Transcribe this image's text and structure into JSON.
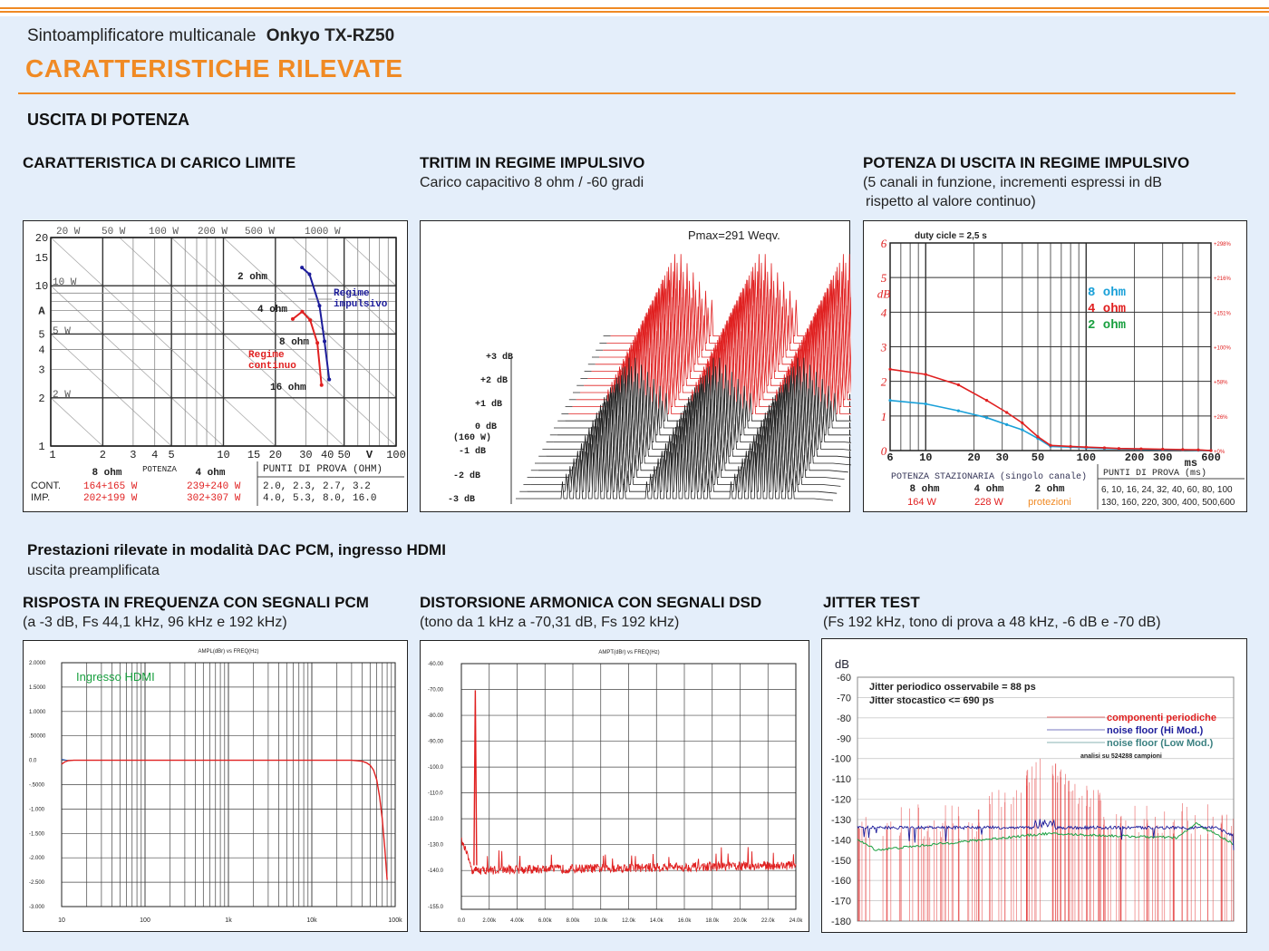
{
  "header": {
    "subtitle": "Sintoamplificatore multicanale",
    "model": "Onkyo TX-RZ50",
    "title": "CARATTERISTICHE RILEVATE"
  },
  "section1": {
    "title": "USCITA DI POTENZA"
  },
  "section2": {
    "title": "Prestazioni rilevate in modalità DAC PCM, ingresso HDMI",
    "subtitle": "uscita preamplificata"
  },
  "colors": {
    "accent": "#f08a24",
    "red": "#e02020",
    "blue": "#1c1c9a",
    "cyan": "#1aa0d8",
    "green": "#1aa040",
    "orange": "#f08a24"
  },
  "panel1": {
    "title": "CARATTERISTICA DI CARICO LIMITE",
    "chart_data": {
      "type": "line",
      "xscale": "log",
      "yscale": "log",
      "xlim": [
        1,
        100
      ],
      "ylim": [
        1,
        20
      ],
      "xlabel": "V",
      "ylabel": "A",
      "x_ticks": [
        "1",
        "2",
        "3",
        "4",
        "5",
        "10",
        "15",
        "20",
        "30",
        "40",
        "50",
        "V",
        "100"
      ],
      "y_ticks": [
        "20",
        "15",
        "10",
        "A",
        "5",
        "4",
        "3",
        "2",
        "1"
      ],
      "power_lines": [
        "20 W",
        "50 W",
        "100 W",
        "200 W",
        "500 W",
        "1000 W",
        "10 W",
        "5 W",
        "2 W"
      ],
      "series": [
        {
          "name": "Regime continuo",
          "color": "red",
          "points": [
            [
              25.2,
              6.2
            ],
            [
              28.6,
              6.9
            ],
            [
              31.8,
              6.1
            ],
            [
              35,
              4.4
            ],
            [
              37,
              2.4
            ]
          ]
        },
        {
          "name": "Regime impulsivo",
          "color": "blue",
          "points": [
            [
              28.5,
              13
            ],
            [
              31.5,
              11.8
            ],
            [
              36,
              7.5
            ],
            [
              38.5,
              4.5
            ],
            [
              41,
              2.6
            ]
          ]
        }
      ],
      "annotations": [
        "2 ohm",
        "4 ohm",
        "8 ohm",
        "16 ohm",
        "Regime",
        "continuo",
        "Regime",
        "impulsivo"
      ]
    },
    "table": {
      "col_8": "8 ohm",
      "col_pot": "POTENZA",
      "col_4": "4 ohm",
      "col_punti": "PUNTI DI PROVA (OHM)",
      "rows": [
        {
          "label": "CONT.",
          "v8": "164+165 W",
          "v4": "239+240 W",
          "punti": "2.0, 2.3, 2.7, 3.2"
        },
        {
          "label": "IMP.",
          "v8": "202+199 W",
          "v4": "302+307 W",
          "punti": "4.0, 5.3, 8.0, 16.0"
        }
      ]
    }
  },
  "panel2": {
    "title": "TRITIM IN REGIME IMPULSIVO",
    "desc": "Carico capacitivo 8 ohm / -60 gradi",
    "chart_data": {
      "type": "waterfall",
      "pmax": "Pmax=291 Weqv.",
      "levels": [
        "+3 dB",
        "+2 dB",
        "+1 dB",
        "0 dB",
        "(160 W)",
        "-1 dB",
        "-2 dB",
        "-3 dB"
      ],
      "burst_groups": 3,
      "bursts_per_group": 11,
      "traces": 24,
      "red_traces": 12
    }
  },
  "panel3": {
    "title": "POTENZA DI USCITA IN REGIME IMPULSIVO",
    "desc1": "(5 canali in funzione, incrementi espressi in dB",
    "desc2": "rispetto al valore continuo)",
    "chart_data": {
      "type": "line",
      "xscale": "log",
      "title": "duty cicle = 2,5 s",
      "xlim": [
        6,
        600
      ],
      "ylim": [
        0,
        6
      ],
      "ylabel": "dB",
      "xlabel": "ms",
      "x_ticks": [
        "6",
        "10",
        "20",
        "30",
        "50",
        "100",
        "200",
        "300",
        "ms",
        "600"
      ],
      "y_ticks": [
        "6",
        "5",
        "dB",
        "4",
        "3",
        "2",
        "1",
        "0"
      ],
      "right_ticks": [
        "+298%",
        "+216%",
        "+151%",
        "+100%",
        "+58%",
        "+26%",
        "+0%"
      ],
      "legend": [
        {
          "label": "8 ohm",
          "color": "cyan"
        },
        {
          "label": "4 ohm",
          "color": "red"
        },
        {
          "label": "2 ohm",
          "color": "green"
        }
      ],
      "series": [
        {
          "name": "8 ohm",
          "color": "cyan",
          "x": [
            6,
            10,
            16,
            24,
            32,
            40,
            50,
            60,
            80,
            100,
            130,
            160,
            220,
            300,
            400,
            500,
            600
          ],
          "y": [
            1.45,
            1.35,
            1.15,
            0.95,
            0.75,
            0.6,
            0.35,
            0.12,
            0.1,
            0.08,
            0.06,
            0.05,
            0.04,
            0.03,
            0.02,
            0.01,
            0.0
          ]
        },
        {
          "name": "4 ohm",
          "color": "red",
          "x": [
            6,
            10,
            16,
            24,
            32,
            40,
            50,
            60,
            80,
            100,
            130,
            160,
            220,
            300,
            400,
            500,
            600
          ],
          "y": [
            2.35,
            2.2,
            1.9,
            1.45,
            1.1,
            0.8,
            0.4,
            0.15,
            0.12,
            0.1,
            0.08,
            0.06,
            0.05,
            0.04,
            0.03,
            0.02,
            0.0
          ]
        }
      ]
    },
    "table": {
      "head": "POTENZA STAZIONARIA (singolo canale)",
      "head2": "PUNTI DI PROVA (ms)",
      "c8": "8 ohm",
      "c4": "4 ohm",
      "c2": "2 ohm",
      "v8": "164 W",
      "v4": "228 W",
      "v2": "protezioni",
      "punti1": "6, 10, 16, 24, 32, 40, 60, 80, 100",
      "punti2": "130, 160, 220, 300, 400, 500,600"
    }
  },
  "panel4": {
    "title": "RISPOSTA IN FREQUENZA CON SEGNALI PCM",
    "desc": "(a -3 dB, Fs 44,1 kHz, 96 kHz e 192 kHz)",
    "chart_data": {
      "type": "line",
      "xscale": "log",
      "header": "AMPL(dBr)          vs          FREQ(Hz)",
      "label": "Ingresso HDMI",
      "xlim": [
        10,
        100000
      ],
      "ylim": [
        -3,
        2
      ],
      "x_ticks": [
        "10",
        "100",
        "1k",
        "10k",
        "100k"
      ],
      "y_ticks": [
        "2.0000",
        "1.5000",
        "1.0000",
        ".50000",
        "0.0",
        "-.5000",
        "-1.000",
        "-1.500",
        "-2.000",
        "-2.500",
        "-3.000"
      ],
      "series": [
        {
          "name": "response",
          "color": "red",
          "x": [
            10,
            11,
            12,
            14,
            20,
            100,
            1000,
            10000,
            20000,
            30000,
            40000,
            45000,
            50000,
            55000,
            60000,
            65000,
            70000,
            75000,
            80000
          ],
          "y": [
            -0.08,
            -0.03,
            -0.01,
            0.0,
            0.0,
            0.0,
            0.0,
            0.0,
            0.0,
            0.0,
            -0.02,
            -0.05,
            -0.1,
            -0.2,
            -0.4,
            -0.75,
            -1.2,
            -1.8,
            -2.45
          ]
        }
      ]
    }
  },
  "panel5": {
    "title": "DISTORSIONE ARMONICA CON SEGNALI DSD",
    "desc": "(tono da 1 kHz a -70,31 dB, Fs 192 kHz)",
    "chart_data": {
      "type": "line",
      "header": "AMPT(dBr)          vs          FREQ(Hz)",
      "xlim": [
        0,
        24000
      ],
      "ylim": [
        -155,
        -60
      ],
      "x_ticks": [
        "0.0",
        "2.00k",
        "4.00k",
        "6.00k",
        "8.00k",
        "10.0k",
        "12.0k",
        "14.0k",
        "16.0k",
        "18.0k",
        "20.0k",
        "22.0k",
        "24.0k"
      ],
      "y_ticks": [
        "-60.00",
        "-70.00",
        "-80.00",
        "-90.00",
        "-100.0",
        "-110.0",
        "-120.0",
        "-130.0",
        "-140.0",
        "-155.0"
      ],
      "fundamental": {
        "freq": 1000,
        "level": -70.3
      },
      "noise_floor": -140
    }
  },
  "panel6": {
    "title": "JITTER TEST",
    "desc": "(Fs 192 kHz, tono di prova a 48 kHz, -6 dB e -70 dB)",
    "chart_data": {
      "type": "line",
      "ylabel": "dB",
      "ylim": [
        -180,
        -60
      ],
      "y_ticks": [
        "-60",
        "-70",
        "-80",
        "-90",
        "-100",
        "-110",
        "-120",
        "-130",
        "-140",
        "-150",
        "-160",
        "-170",
        "-180"
      ],
      "text1": "Jitter  periodico osservabile = 88 ps",
      "text2": "Jitter stocastico <= 690 ps",
      "legend": [
        {
          "label": "componenti  periodiche",
          "color": "red"
        },
        {
          "label": "noise floor (Hi Mod.)",
          "color": "blue"
        },
        {
          "label": "noise floor (Low Mod.)",
          "color": "green"
        }
      ],
      "note": "analisi su 524288 campioni",
      "series": [
        {
          "name": "noise floor (Hi Mod.)",
          "color": "blue",
          "level": -134
        },
        {
          "name": "noise floor (Low Mod.)",
          "color": "green",
          "level_start": -145,
          "level_mid": -137,
          "level_end": -139
        },
        {
          "name": "componenti periodiche",
          "color": "red",
          "peak": -100
        }
      ]
    }
  }
}
